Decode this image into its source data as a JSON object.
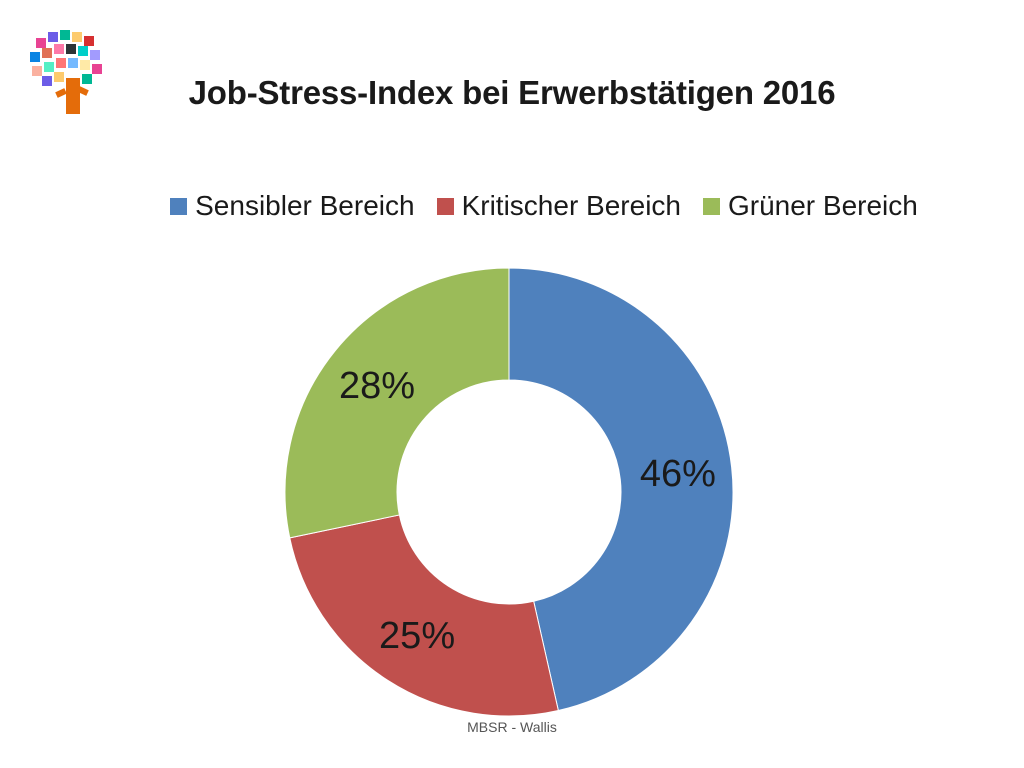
{
  "chart_data": {
    "type": "pie",
    "variant": "donut",
    "title": "Job-Stress-Index bei Erwerbstätigen 2016",
    "categories": [
      "Sensibler Bereich",
      "Kritischer Bereich",
      "Grüner Bereich"
    ],
    "values": [
      46,
      25,
      28
    ],
    "data_labels": [
      "46%",
      "25%",
      "28%"
    ],
    "colors": [
      "#4f81bd",
      "#c0504d",
      "#9bbb59"
    ],
    "legend_position": "top",
    "start_angle": "12 o'clock, clockwise"
  },
  "footer": {
    "text": "MBSR - Wallis"
  },
  "logo": {
    "icon": "tree-icon"
  }
}
